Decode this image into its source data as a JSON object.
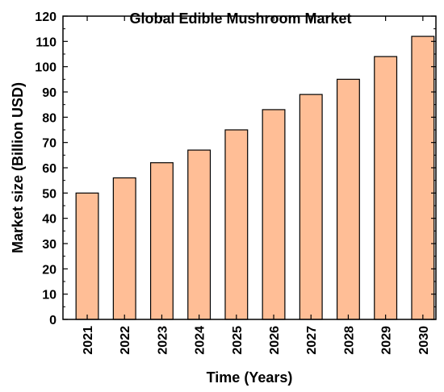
{
  "chart_data": {
    "type": "bar",
    "title": "Global Edible Mushroom Market",
    "xlabel": "Time (Years)",
    "ylabel": "Market size (Billion USD)",
    "categories": [
      "2021",
      "2022",
      "2023",
      "2024",
      "2025",
      "2026",
      "2027",
      "2028",
      "2029",
      "2030"
    ],
    "values": [
      50,
      56,
      62,
      67,
      75,
      83,
      89,
      95,
      104,
      112
    ],
    "ylim": [
      0,
      120
    ],
    "yticks": [
      0,
      10,
      20,
      30,
      40,
      50,
      60,
      70,
      80,
      90,
      100,
      110,
      120
    ],
    "grid": false,
    "legend": "none",
    "bar_color": "#FFBE96",
    "bar_edge_color": "#000000"
  }
}
